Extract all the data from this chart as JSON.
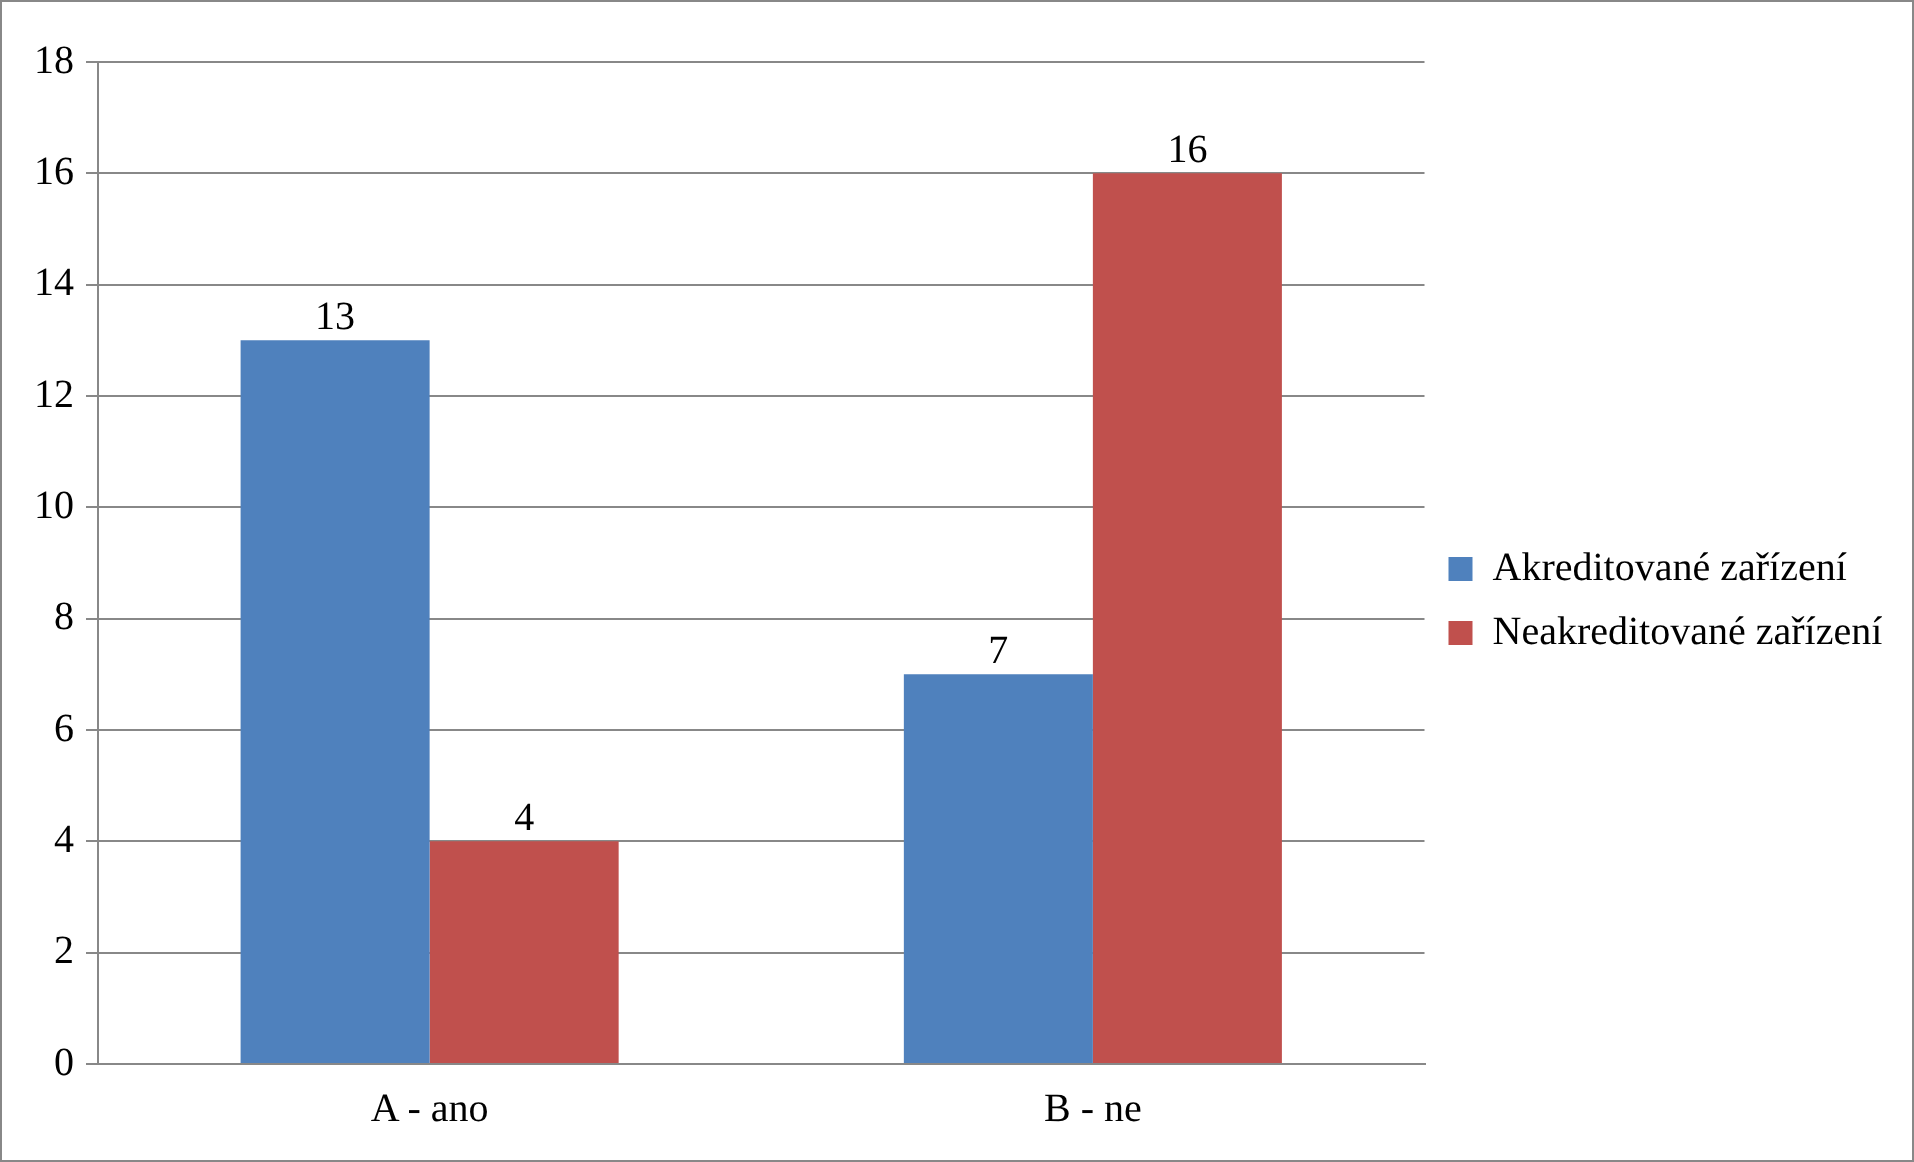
{
  "chart_data": {
    "type": "bar",
    "categories": [
      "A - ano",
      "B - ne"
    ],
    "series": [
      {
        "name": "Akreditované zařízení",
        "color": "#4f81bd",
        "values": [
          13,
          7
        ]
      },
      {
        "name": "Neakreditované zařízení",
        "color": "#c0504d",
        "values": [
          4,
          16
        ]
      }
    ],
    "ylim": [
      0,
      18
    ],
    "yticks": [
      0,
      2,
      4,
      6,
      8,
      10,
      12,
      14,
      16,
      18
    ],
    "grid": "y",
    "legend": "right",
    "data_labels": true
  }
}
